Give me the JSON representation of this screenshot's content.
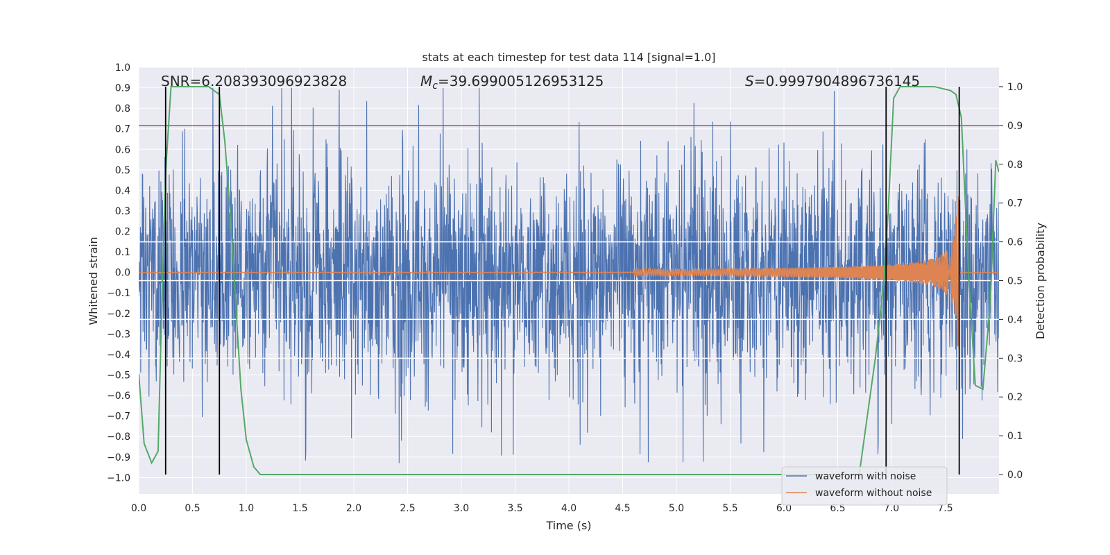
{
  "chart_data": {
    "type": "line",
    "title": "stats at each timestep for test data 114 [signal=1.0]",
    "xlabel": "Time (s)",
    "ylabel_left": "Whitened strain",
    "ylabel_right": "Detection probability",
    "xlim": [
      0.0,
      8.0
    ],
    "ylim_left": [
      -1.08,
      1.0
    ],
    "ylim_right": [
      -0.05,
      1.05
    ],
    "x_ticks": [
      0.0,
      0.5,
      1.0,
      1.5,
      2.0,
      2.5,
      3.0,
      3.5,
      4.0,
      4.5,
      5.0,
      5.5,
      6.0,
      6.5,
      7.0,
      7.5
    ],
    "x_tick_labels": [
      "0.0",
      "0.5",
      "1.0",
      "1.5",
      "2.0",
      "2.5",
      "3.0",
      "3.5",
      "4.0",
      "4.5",
      "5.0",
      "5.5",
      "6.0",
      "6.5",
      "7.0",
      "7.5"
    ],
    "y_left_ticks": [
      1.0,
      0.9,
      0.8,
      0.7,
      0.6,
      0.5,
      0.4,
      0.3,
      0.2,
      0.1,
      0.0,
      -0.1,
      -0.2,
      -0.3,
      -0.4,
      -0.5,
      -0.6,
      -0.7,
      -0.8,
      -0.9,
      -1.0
    ],
    "y_left_tick_labels": [
      "1.0",
      "0.9",
      "0.8",
      "0.7",
      "0.6",
      "0.5",
      "0.4",
      "0.3",
      "0.2",
      "0.1",
      "0.0",
      "−0.1",
      "−0.2",
      "−0.3",
      "−0.4",
      "−0.5",
      "−0.6",
      "−0.7",
      "−0.8",
      "−0.9",
      "−1.0"
    ],
    "y_right_ticks": [
      1.0,
      0.9,
      0.8,
      0.7,
      0.6,
      0.5,
      0.4,
      0.3,
      0.2,
      0.1,
      0.0
    ],
    "y_right_tick_labels": [
      "1.0",
      "0.9",
      "0.8",
      "0.7",
      "0.6",
      "0.5",
      "0.4",
      "0.3",
      "0.2",
      "0.1",
      "0.0"
    ],
    "threshold_right": 0.9,
    "vertical_lines_x": [
      0.25,
      0.75,
      6.95,
      7.63
    ],
    "annotations": {
      "snr": "SNR=6.208393096923828",
      "mc_symbol": "M",
      "mc_sub": "c",
      "mc_value": "=39.699005126953125",
      "s_symbol": "S",
      "s_value": "=0.9997904896736145"
    },
    "legend": {
      "location": "lower-right",
      "entries": [
        "waveform with noise",
        "waveform without noise"
      ]
    },
    "series": [
      {
        "name": "waveform with noise",
        "axis": "left",
        "description": "noisy whitened strain, approx amplitude ±0.45 with spikes to ±1.0 across 0–8 s"
      },
      {
        "name": "waveform without noise",
        "axis": "left",
        "description": "chirp signal: flat near 0 until ~4.7 s, growing oscillation, peak ±0.37 at ~7.62 s, then 0"
      },
      {
        "name": "detection probability",
        "axis": "right",
        "x": [
          0.0,
          0.05,
          0.12,
          0.18,
          0.22,
          0.25,
          0.3,
          0.45,
          0.65,
          0.7,
          0.75,
          0.8,
          0.85,
          0.95,
          1.0,
          1.07,
          1.13,
          1.5,
          2.0,
          3.0,
          4.0,
          5.0,
          6.0,
          6.7,
          6.85,
          6.93,
          6.97,
          7.02,
          7.08,
          7.2,
          7.4,
          7.55,
          7.6,
          7.65,
          7.72,
          7.78,
          7.85,
          7.92,
          7.97,
          8.0
        ],
        "values": [
          0.26,
          0.08,
          0.03,
          0.06,
          0.5,
          0.78,
          1.0,
          1.0,
          1.0,
          0.99,
          0.98,
          0.86,
          0.68,
          0.22,
          0.09,
          0.02,
          0.0,
          0.0,
          0.0,
          0.0,
          0.0,
          0.0,
          0.0,
          0.0,
          0.3,
          0.5,
          0.68,
          0.97,
          1.0,
          1.0,
          1.0,
          0.99,
          0.98,
          0.92,
          0.5,
          0.23,
          0.22,
          0.45,
          0.81,
          0.78
        ]
      }
    ],
    "colors": {
      "noise": "#4c72b0",
      "clean": "#dd8452",
      "prob": "#55a868",
      "threshold": "#c44e52",
      "vline": "#000000",
      "plot_bg": "#eaeaf2",
      "grid": "#ffffff"
    }
  }
}
